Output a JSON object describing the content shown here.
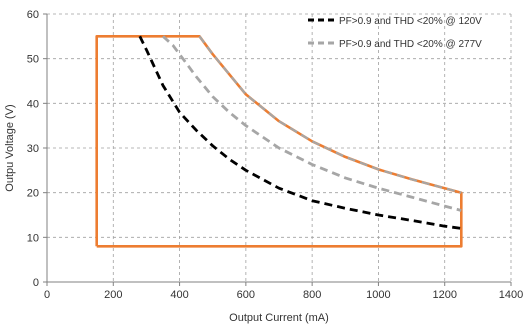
{
  "chart_data": {
    "type": "line",
    "title": "",
    "xlabel": "Output Current (mA)",
    "ylabel": "Outpu Voltage (V)",
    "xlim": [
      0,
      1400
    ],
    "ylim": [
      0,
      60
    ],
    "x_ticks": [
      0,
      200,
      400,
      600,
      800,
      1000,
      1200,
      1400
    ],
    "y_ticks": [
      0,
      10,
      20,
      30,
      40,
      50,
      60
    ],
    "x_tick_labels": [
      "0",
      "200",
      "400",
      "600",
      "800",
      "1000",
      "1200",
      "1400"
    ],
    "y_tick_labels": [
      "0",
      "10",
      "20",
      "30",
      "40",
      "50",
      "60"
    ],
    "grid": true,
    "legend_position": "top-right",
    "series": [
      {
        "name": "PF>0.9 and THD <20% @ 120V",
        "style": "dashed",
        "color": "#000000",
        "x": [
          280,
          300,
          350,
          400,
          450,
          500,
          550,
          600,
          700,
          800,
          900,
          1000,
          1100,
          1200,
          1250
        ],
        "y": [
          55,
          52,
          44,
          38,
          34,
          30.5,
          27.5,
          25,
          21,
          18.2,
          16.5,
          15,
          13.8,
          12.5,
          12
        ]
      },
      {
        "name": "PF>0.9 and THD <20% @ 277V",
        "style": "dashed",
        "color": "#a6a6a6",
        "x": [
          350,
          380,
          420,
          450,
          500,
          550,
          600,
          700,
          800,
          900,
          1000,
          1100,
          1200,
          1250
        ],
        "y": [
          55,
          53,
          49,
          46,
          41.5,
          38,
          35,
          30,
          26.3,
          23.3,
          21,
          19,
          17,
          16
        ]
      },
      {
        "name": "",
        "style": "solid",
        "color": "#ed7d31",
        "x": [
          150,
          150,
          460,
          500,
          550,
          600,
          700,
          800,
          900,
          1000,
          1100,
          1200,
          1250,
          1250,
          150
        ],
        "y": [
          8,
          55,
          55,
          51,
          46.5,
          42,
          36,
          31.5,
          28,
          25.2,
          23,
          21,
          20,
          8,
          8
        ]
      },
      {
        "name": "",
        "style": "dashed",
        "color": "#a6a6a6",
        "x": [
          460,
          500,
          550,
          600,
          700,
          800,
          900,
          1000,
          1100,
          1200,
          1250
        ],
        "y": [
          55,
          51,
          46.5,
          42,
          36,
          31.5,
          28,
          25.2,
          23,
          21,
          20
        ]
      }
    ]
  }
}
